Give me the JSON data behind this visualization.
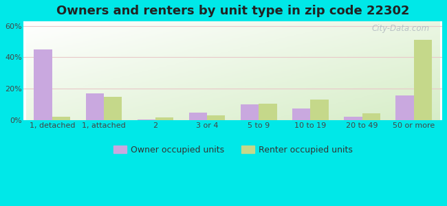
{
  "title": "Owners and renters by unit type in zip code 22302",
  "categories": [
    "1, detached",
    "1, attached",
    "2",
    "3 or 4",
    "5 to 9",
    "10 to 19",
    "20 to 49",
    "50 or more"
  ],
  "owner_values": [
    45,
    17,
    0.5,
    5,
    10,
    7.5,
    2.5,
    16
  ],
  "renter_values": [
    2.5,
    15,
    2,
    3,
    10.5,
    13,
    4.5,
    51
  ],
  "owner_color": "#c9a8df",
  "renter_color": "#c5d88a",
  "owner_label": "Owner occupied units",
  "renter_label": "Renter occupied units",
  "ylim": [
    0,
    63
  ],
  "yticks": [
    0,
    20,
    40,
    60
  ],
  "ytick_labels": [
    "0%",
    "20%",
    "40%",
    "60%"
  ],
  "bg_outer": "#00e8e8",
  "watermark": "City-Data.com",
  "title_fontsize": 13,
  "bar_width": 0.35
}
